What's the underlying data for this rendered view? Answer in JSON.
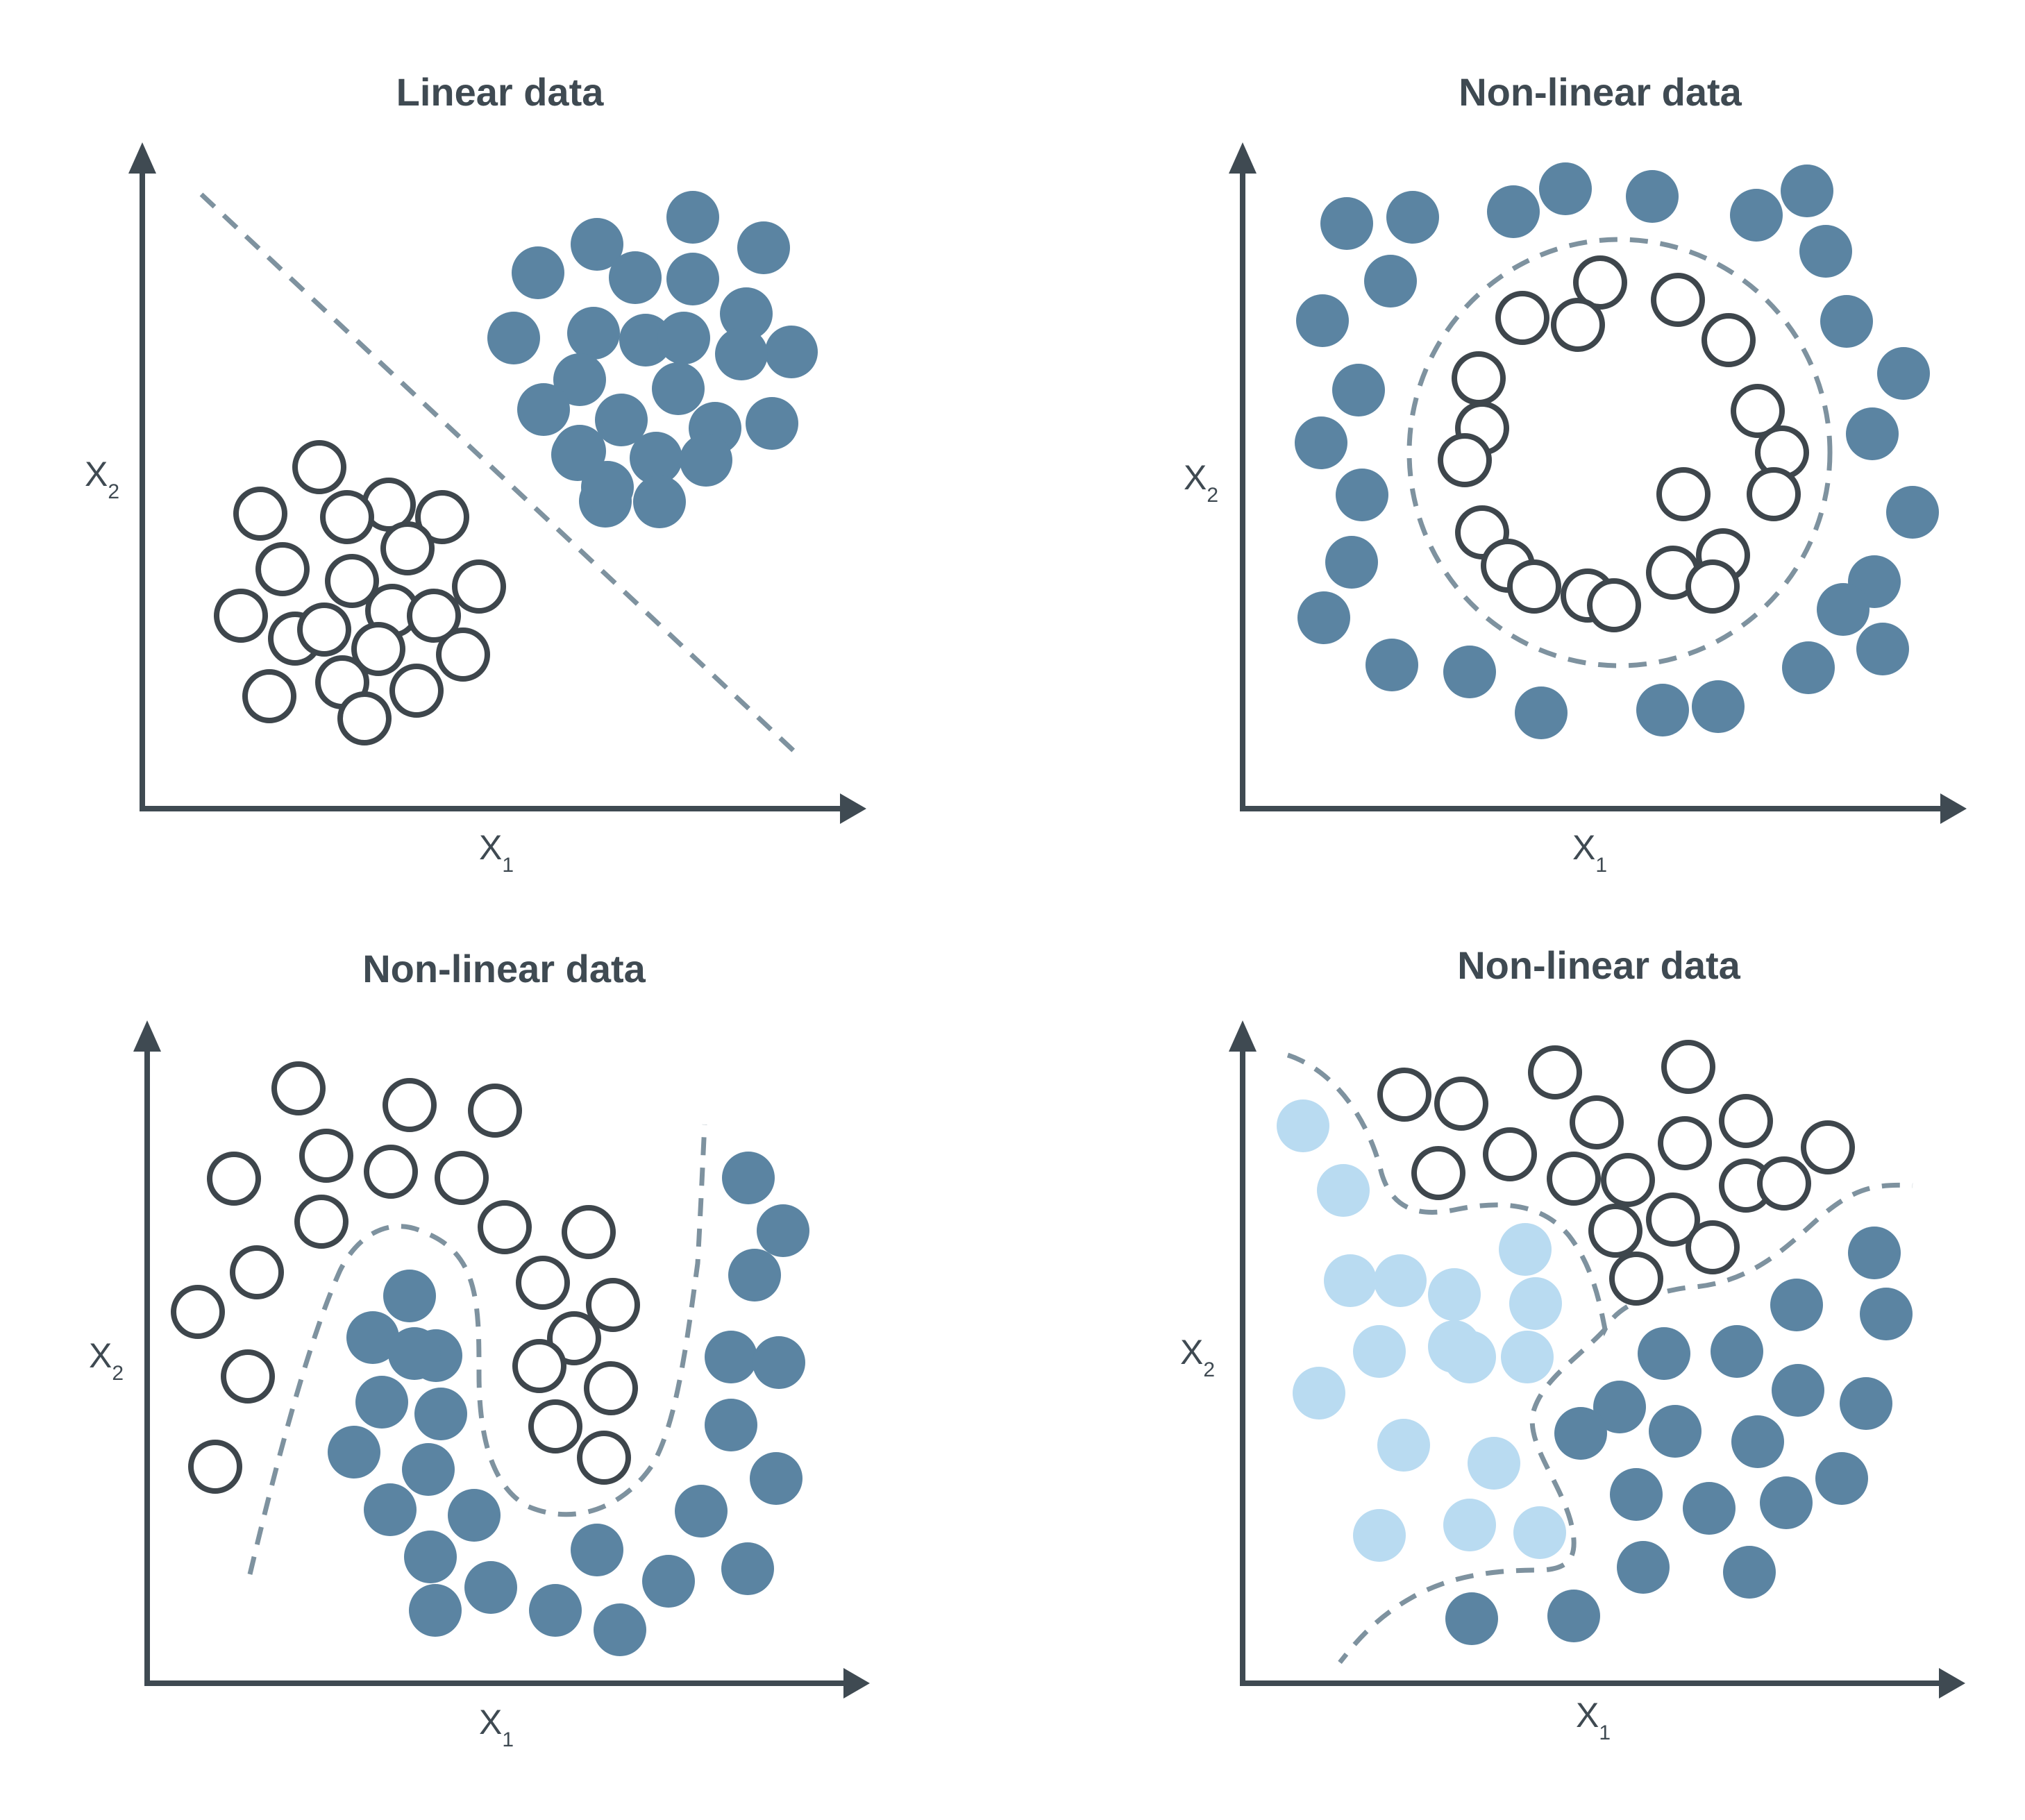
{
  "colors": {
    "dark": "#5b84a2",
    "light": "#b9dbf1",
    "outline": "#3e464c",
    "axis": "#3f4a52",
    "boundary": "#7e929f"
  },
  "panels": [
    {
      "title": "Linear data",
      "x_label": "X",
      "x_sub": "1",
      "y_label": "X",
      "y_sub": "2"
    },
    {
      "title": "Non-linear data",
      "x_label": "X",
      "x_sub": "1",
      "y_label": "X",
      "y_sub": "2"
    },
    {
      "title": "Non-linear data",
      "x_label": "X",
      "x_sub": "1",
      "y_label": "X",
      "y_sub": "2"
    },
    {
      "title": "Non-linear data",
      "x_label": "X",
      "x_sub": "1",
      "y_label": "X",
      "y_sub": "2"
    }
  ]
}
